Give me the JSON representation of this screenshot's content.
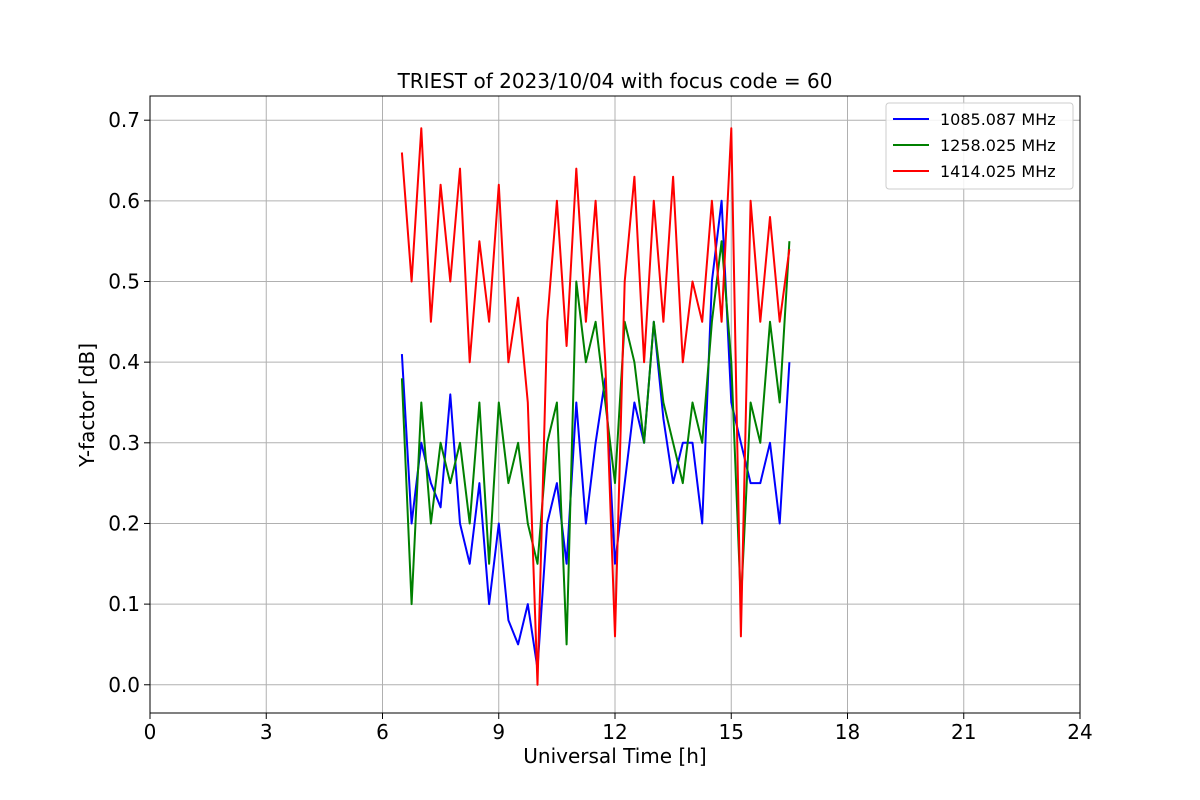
{
  "chart_data": {
    "type": "line",
    "title": "TRIEST of 2023/10/04 with focus code = 60",
    "xlabel": "Universal Time [h]",
    "ylabel": "Y-factor [dB]",
    "xlim": [
      0,
      24
    ],
    "ylim": [
      -0.035,
      0.73
    ],
    "x_ticks": [
      0,
      3,
      6,
      9,
      12,
      15,
      18,
      21,
      24
    ],
    "y_ticks": [
      0.0,
      0.1,
      0.2,
      0.3,
      0.4,
      0.5,
      0.6,
      0.7
    ],
    "grid": true,
    "legend_position": "top-right",
    "series": [
      {
        "name": "1085.087 MHz",
        "color": "#0000ff",
        "x": [
          6.5,
          6.75,
          7.0,
          7.25,
          7.5,
          7.75,
          8.0,
          8.25,
          8.5,
          8.75,
          9.0,
          9.25,
          9.5,
          9.75,
          10.0,
          10.25,
          10.5,
          10.75,
          11.0,
          11.25,
          11.5,
          11.75,
          12.0,
          12.25,
          12.5,
          12.75,
          13.0,
          13.25,
          13.5,
          13.75,
          14.0,
          14.25,
          14.5,
          14.75,
          15.0,
          15.25,
          15.5,
          15.75,
          16.0,
          16.25,
          16.5
        ],
        "y": [
          0.41,
          0.2,
          0.3,
          0.25,
          0.22,
          0.36,
          0.2,
          0.15,
          0.25,
          0.1,
          0.2,
          0.08,
          0.05,
          0.1,
          0.02,
          0.2,
          0.25,
          0.15,
          0.35,
          0.2,
          0.3,
          0.38,
          0.15,
          0.25,
          0.35,
          0.3,
          0.45,
          0.33,
          0.25,
          0.3,
          0.3,
          0.2,
          0.5,
          0.6,
          0.35,
          0.3,
          0.25,
          0.25,
          0.3,
          0.2,
          0.4
        ]
      },
      {
        "name": "1258.025 MHz",
        "color": "#008000",
        "x": [
          6.5,
          6.75,
          7.0,
          7.25,
          7.5,
          7.75,
          8.0,
          8.25,
          8.5,
          8.75,
          9.0,
          9.25,
          9.5,
          9.75,
          10.0,
          10.25,
          10.5,
          10.75,
          11.0,
          11.25,
          11.5,
          11.75,
          12.0,
          12.25,
          12.5,
          12.75,
          13.0,
          13.25,
          13.5,
          13.75,
          14.0,
          14.25,
          14.5,
          14.75,
          15.0,
          15.25,
          15.5,
          15.75,
          16.0,
          16.25,
          16.5
        ],
        "y": [
          0.38,
          0.1,
          0.35,
          0.2,
          0.3,
          0.25,
          0.3,
          0.2,
          0.35,
          0.15,
          0.35,
          0.25,
          0.3,
          0.2,
          0.15,
          0.3,
          0.35,
          0.05,
          0.5,
          0.4,
          0.45,
          0.35,
          0.25,
          0.45,
          0.4,
          0.3,
          0.45,
          0.35,
          0.3,
          0.25,
          0.35,
          0.3,
          0.45,
          0.55,
          0.4,
          0.1,
          0.35,
          0.3,
          0.45,
          0.35,
          0.55
        ]
      },
      {
        "name": "1414.025 MHz",
        "color": "#ff0000",
        "x": [
          6.5,
          6.75,
          7.0,
          7.25,
          7.5,
          7.75,
          8.0,
          8.25,
          8.5,
          8.75,
          9.0,
          9.25,
          9.5,
          9.75,
          10.0,
          10.25,
          10.5,
          10.75,
          11.0,
          11.25,
          11.5,
          11.75,
          12.0,
          12.25,
          12.5,
          12.75,
          13.0,
          13.25,
          13.5,
          13.75,
          14.0,
          14.25,
          14.5,
          14.75,
          15.0,
          15.25,
          15.5,
          15.75,
          16.0,
          16.25,
          16.5
        ],
        "y": [
          0.66,
          0.5,
          0.69,
          0.45,
          0.62,
          0.5,
          0.64,
          0.4,
          0.55,
          0.45,
          0.62,
          0.4,
          0.48,
          0.35,
          0.0,
          0.45,
          0.6,
          0.42,
          0.64,
          0.45,
          0.6,
          0.4,
          0.06,
          0.5,
          0.63,
          0.4,
          0.6,
          0.45,
          0.63,
          0.4,
          0.5,
          0.45,
          0.6,
          0.45,
          0.69,
          0.06,
          0.6,
          0.45,
          0.58,
          0.45,
          0.54
        ]
      }
    ]
  }
}
